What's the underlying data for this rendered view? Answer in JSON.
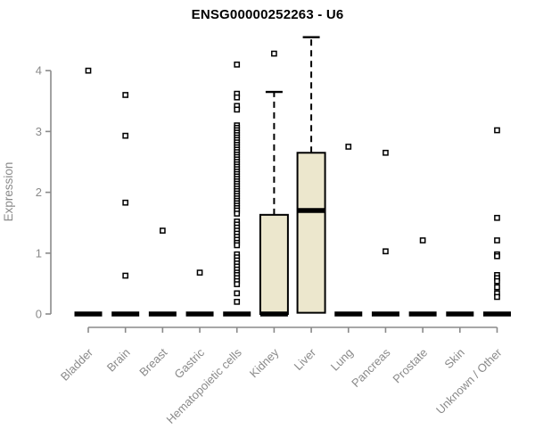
{
  "chart_data": {
    "type": "boxplot",
    "title": "ENSG00000252263 - U6",
    "ylabel": "Expression",
    "xlabel": "",
    "ylim": [
      0,
      4.6
    ],
    "yticks": [
      0,
      1,
      2,
      3,
      4
    ],
    "grid": false,
    "legend": "none",
    "colors": {
      "box_fill": "#ece7cd",
      "box_stroke": "#000000",
      "median": "#000000",
      "whisker": "#000000",
      "outlier_fill": "#ffffff",
      "outlier_stroke": "#000000",
      "axis": "#8a8a8a",
      "tick_label": "#8a8a8a",
      "title": "#000000"
    },
    "categories": [
      "Bladder",
      "Brain",
      "Breast",
      "Gastric",
      "Hematopoietic cells",
      "Kidney",
      "Liver",
      "Lung",
      "Pancreas",
      "Prostate",
      "Skin",
      "Unknown / Other"
    ],
    "boxes": [
      {
        "label": "Bladder",
        "q1": 0,
        "median": 0,
        "q3": 0,
        "whisker_low": 0,
        "whisker_high": 0,
        "outliers": [
          4.0
        ]
      },
      {
        "label": "Brain",
        "q1": 0,
        "median": 0,
        "q3": 0,
        "whisker_low": 0,
        "whisker_high": 0,
        "outliers": [
          3.6,
          2.93,
          1.83,
          0.63
        ]
      },
      {
        "label": "Breast",
        "q1": 0,
        "median": 0,
        "q3": 0,
        "whisker_low": 0,
        "whisker_high": 0,
        "outliers": [
          1.37
        ]
      },
      {
        "label": "Gastric",
        "q1": 0,
        "median": 0,
        "q3": 0,
        "whisker_low": 0,
        "whisker_high": 0,
        "outliers": [
          0.68
        ]
      },
      {
        "label": "Hematopoietic cells",
        "q1": 0,
        "median": 0,
        "q3": 0,
        "whisker_low": 0,
        "whisker_high": 0,
        "outliers": [
          4.1,
          3.62,
          3.56,
          3.42,
          3.36,
          3.1,
          3.06,
          3.02,
          2.98,
          2.94,
          2.9,
          2.86,
          2.82,
          2.78,
          2.74,
          2.7,
          2.66,
          2.62,
          2.58,
          2.54,
          2.5,
          2.46,
          2.42,
          2.38,
          2.34,
          2.3,
          2.26,
          2.22,
          2.18,
          2.14,
          2.1,
          2.06,
          2.02,
          1.98,
          1.94,
          1.9,
          1.86,
          1.82,
          1.78,
          1.74,
          1.7,
          1.65,
          1.52,
          1.47,
          1.42,
          1.37,
          1.32,
          1.27,
          1.22,
          1.17,
          1.13,
          0.98,
          0.93,
          0.88,
          0.83,
          0.78,
          0.73,
          0.68,
          0.64,
          0.59,
          0.54,
          0.49,
          0.34,
          0.2
        ]
      },
      {
        "label": "Kidney",
        "q1": 0,
        "median": 0,
        "q3": 1.63,
        "whisker_low": 0,
        "whisker_high": 3.65,
        "outliers": [
          4.28
        ]
      },
      {
        "label": "Liver",
        "q1": 0.02,
        "median": 1.7,
        "q3": 2.65,
        "whisker_low": 0.02,
        "whisker_high": 4.55,
        "outliers": []
      },
      {
        "label": "Lung",
        "q1": 0,
        "median": 0,
        "q3": 0,
        "whisker_low": 0,
        "whisker_high": 0,
        "outliers": [
          2.75
        ]
      },
      {
        "label": "Pancreas",
        "q1": 0,
        "median": 0,
        "q3": 0,
        "whisker_low": 0,
        "whisker_high": 0,
        "outliers": [
          2.65,
          1.03
        ]
      },
      {
        "label": "Prostate",
        "q1": 0,
        "median": 0,
        "q3": 0,
        "whisker_low": 0,
        "whisker_high": 0,
        "outliers": [
          1.21
        ]
      },
      {
        "label": "Skin",
        "q1": 0,
        "median": 0,
        "q3": 0,
        "whisker_low": 0,
        "whisker_high": 0,
        "outliers": []
      },
      {
        "label": "Unknown / Other",
        "q1": 0,
        "median": 0,
        "q3": 0,
        "whisker_low": 0,
        "whisker_high": 0,
        "outliers": [
          3.02,
          1.58,
          1.21,
          0.98,
          0.95,
          0.64,
          0.59,
          0.54,
          0.44,
          0.34,
          0.28
        ]
      }
    ]
  }
}
